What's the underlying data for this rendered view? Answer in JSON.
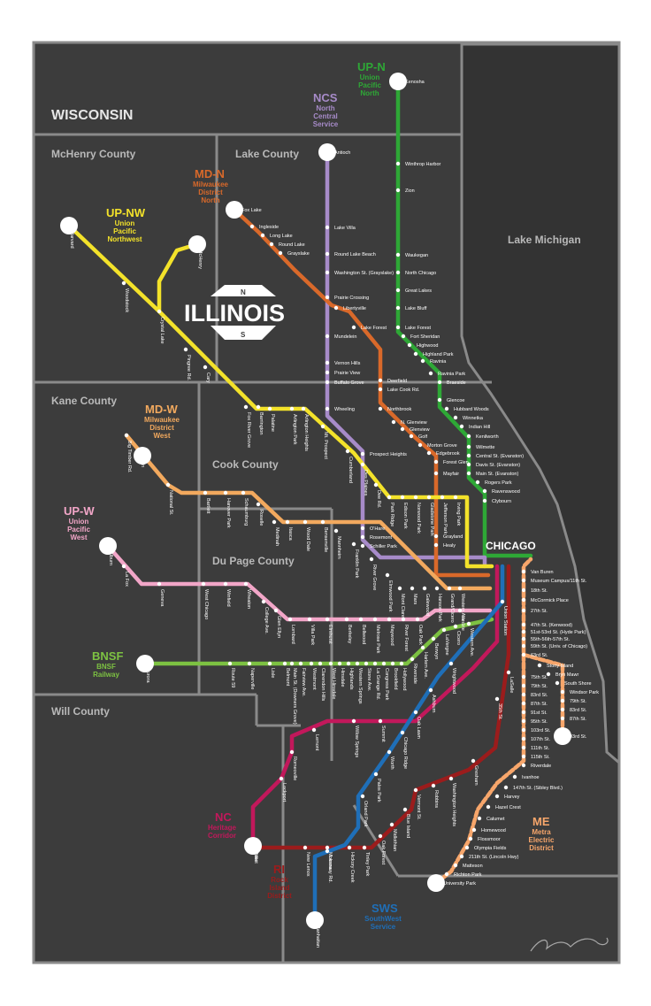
{
  "title": "ILLINOIS",
  "compass": {
    "north": "N",
    "south": "S"
  },
  "hub_label": "CHICAGO",
  "lake_label": "Lake Michigan",
  "state_label": "WISCONSIN",
  "counties": [
    "McHenry County",
    "Lake County",
    "Kane County",
    "Cook County",
    "Du Page County",
    "Will County"
  ],
  "colors": {
    "background": "#3c3c3c",
    "border": "#8a8a8a",
    "up_n": "#2ea836",
    "ncs": "#a78bc9",
    "md_n": "#d9692a",
    "up_nw": "#f3e22a",
    "md_w": "#f2a95e",
    "up_w": "#f2a6c8",
    "bnsf": "#7dc242",
    "nc": "#c2185b",
    "ri": "#9b1c1c",
    "sws": "#1f6fb8",
    "me": "#f7a66b"
  },
  "lines": [
    {
      "id": "up_n",
      "code": "UP-N",
      "name": "Union Pacific North"
    },
    {
      "id": "ncs",
      "code": "NCS",
      "name": "North Central Service"
    },
    {
      "id": "md_n",
      "code": "MD-N",
      "name": "Milwaukee District North"
    },
    {
      "id": "up_nw",
      "code": "UP-NW",
      "name": "Union Pacific Northwest"
    },
    {
      "id": "md_w",
      "code": "MD-W",
      "name": "Milwaukee District West"
    },
    {
      "id": "up_w",
      "code": "UP-W",
      "name": "Union Pacific West"
    },
    {
      "id": "bnsf",
      "code": "BNSF",
      "name": "BNSF Railway"
    },
    {
      "id": "nc",
      "code": "NC",
      "name": "Heritage Corridor"
    },
    {
      "id": "ri",
      "code": "RI",
      "name": "Rock Island District"
    },
    {
      "id": "sws",
      "code": "SWS",
      "name": "SouthWest Service"
    },
    {
      "id": "me",
      "code": "ME",
      "name": "Metra Electric District"
    }
  ],
  "stations": {
    "up_n": [
      "Kenosha",
      "Winthrop Harbor",
      "Zion",
      "Waukegan",
      "North Chicago",
      "Great Lakes",
      "Lake Bluff",
      "Lake Forest",
      "Fort Sheridan",
      "Highwood",
      "Highland Park",
      "Ravinia",
      "Ravinia Park",
      "Braeside",
      "Glencoe",
      "Hubbard Woods",
      "Winnetka",
      "Indian Hill",
      "Kenilworth",
      "Wilmette",
      "Central St. (Evanston)",
      "Davis St. (Evanston)",
      "Main St. (Evanston)",
      "Rogers Park",
      "Ravenswood",
      "Clybourn"
    ],
    "ncs": [
      "Antioch",
      "Lake Villa",
      "Round Lake Beach",
      "Washington St. (Grayslake)",
      "Prairie Crossing",
      "Mundelein",
      "Vernon Hills",
      "Prairie View",
      "Buffalo Grove",
      "Wheeling",
      "Prospect Heights",
      "O'Hare",
      "Rosemont",
      "Schiller Park"
    ],
    "md_n": [
      "Fox Lake",
      "Ingleside",
      "Long Lake",
      "Round Lake",
      "Grayslake",
      "Libertyville",
      "Lake Forest",
      "Deerfield",
      "Lake Cook Rd.",
      "Northbrook",
      "N. Glenview",
      "Glenview",
      "Golf",
      "Morton Grove",
      "Edgebrook",
      "Forest Glen",
      "Mayfair",
      "Grayland",
      "Healy"
    ],
    "up_nw": [
      "Harvard",
      "McHenry",
      "Woodstock",
      "Crystal Lake",
      "Pingree Rd.",
      "Cary",
      "Fox River Grove",
      "Barrington",
      "Palatine",
      "Arlington Park",
      "Arlington Heights",
      "Mt. Prospect",
      "Cumberland",
      "Des Plaines",
      "Dee Rd.",
      "Park Ridge",
      "Edison Park",
      "Norwood Park",
      "Gladstone Park",
      "Jefferson Park",
      "Irving Park"
    ],
    "md_w": [
      "Big Timber Rd.",
      "Elgin",
      "National St.",
      "Bartlett",
      "Hanover Park",
      "Schaumburg",
      "Roselle",
      "Medinah",
      "Itasca",
      "Wood Dale",
      "Bensenville",
      "Mannheim",
      "Franklin Park",
      "River Grove",
      "Elmwood Park",
      "Mont Clare",
      "Mars",
      "Galewood",
      "Hanson Park",
      "Grand/Cicero",
      "Western Ave"
    ],
    "up_w": [
      "Elburn",
      "La Fox",
      "Geneva",
      "West Chicago",
      "Winfield",
      "Wheaton",
      "College Ave.",
      "Glen Ellyn",
      "Lombard",
      "Villa Park",
      "Elmhurst",
      "Berkeley",
      "Bellwood",
      "Melrose Park",
      "Maywood",
      "River Forest",
      "Oak Park",
      "Kedzie"
    ],
    "bnsf": [
      "Aurora",
      "Route 59",
      "Naperville",
      "Lisle",
      "Belmont",
      "Main St. (Downers Grove)",
      "Fairview Ave.",
      "Westmont",
      "Clarendon Hills",
      "West Hinsdale",
      "Hinsdale",
      "Highlands",
      "Western Springs",
      "Stone Ave.",
      "La Grange Rd.",
      "Congress Park",
      "Brookfield",
      "Hollywood",
      "Riverside",
      "Harlem Ave.",
      "Berwyn",
      "LaVergne",
      "Cicero",
      "Western Ave."
    ],
    "nc": [
      "Joliet",
      "Lockport",
      "Romeoville",
      "Lemont",
      "Willow Springs",
      "Summit"
    ],
    "ri": [
      "Joliet",
      "New Lenox",
      "Mokena",
      "Hickory Creek",
      "Tinley Park",
      "Oak Forest",
      "Midlothian",
      "Blue Island",
      "Vermont St.",
      "Robbins",
      "Washington Heights",
      "Gresham",
      "35th St.",
      "LaSalle"
    ],
    "sws": [
      "Manhattan",
      "Laraway Rd.",
      "Orland Park",
      "Palos Park",
      "Worth",
      "Chicago Ridge",
      "Oak Lawn",
      "Ashburn",
      "Wrightwood",
      "Union Station"
    ],
    "me": [
      "University Park",
      "Richton Park",
      "Matteson",
      "211th St. (Lincoln Hwy)",
      "Olympia Fields",
      "Flossmoor",
      "Homewood",
      "Calumet",
      "Hazel Crest",
      "Harvey",
      "147th St. (Sibley Blvd.)",
      "Ivanhoe",
      "Riverdale",
      "115th St.",
      "111th St.",
      "107th St.",
      "103rd St.",
      "95th St.",
      "91st St.",
      "87th St.",
      "83rd St.",
      "79th St.",
      "75th St.",
      "63rd St.",
      "59th St. (Univ. of Chicago)",
      "55th-56th-57th St.",
      "51st-53rd St. (Hyde Park)",
      "47th St. (Kenwood)",
      "27th St.",
      "McCormick Place",
      "18th St.",
      "Museum Campus/11th St.",
      "Van Buren",
      "Stony Island",
      "Bryn Mawr",
      "South Shore",
      "Windsor Park",
      "79th St.",
      "83rd St.",
      "87th St.",
      "93rd St."
    ]
  },
  "signature": "L. Shpilker"
}
